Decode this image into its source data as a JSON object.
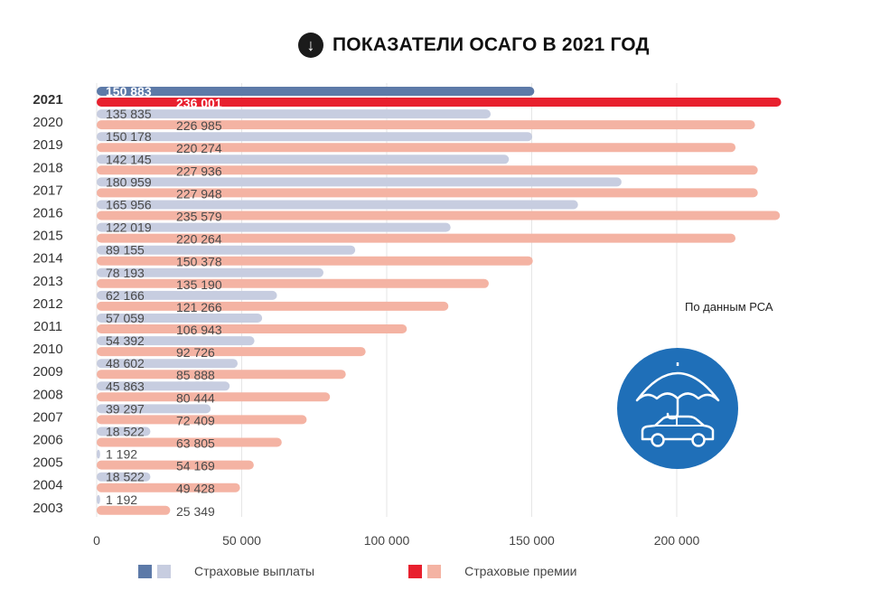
{
  "title": "ПОКАЗАТЕЛИ ОСАГО В 2021 ГОД",
  "title_icon": "arrow-down-circle-icon",
  "source_note": "По данным РСА",
  "badge_icon": "umbrella-car-icon",
  "colors": {
    "payout_highlight": "#5d7aa8",
    "payout": "#c7cde0",
    "premium_highlight": "#e8202e",
    "premium": "#f4b3a3",
    "badge": "#1f6fb8"
  },
  "chart_data": {
    "type": "bar",
    "orientation": "horizontal",
    "categories": [
      "2021",
      "2020",
      "2019",
      "2018",
      "2017",
      "2016",
      "2015",
      "2014",
      "2013",
      "2012",
      "2011",
      "2010",
      "2009",
      "2008",
      "2007",
      "2006",
      "2005",
      "2004",
      "2003"
    ],
    "series": [
      {
        "name": "Страховые выплаты",
        "values": [
          150883,
          135835,
          150178,
          142145,
          180959,
          165956,
          122019,
          89155,
          78193,
          62166,
          57059,
          54392,
          48602,
          45863,
          39297,
          18522,
          1192,
          18522,
          1192
        ],
        "labels": [
          "150 883",
          "135 835",
          "150 178",
          "142 145",
          "180 959",
          "165 956",
          "122 019",
          "89 155",
          "78 193",
          "62 166",
          "57 059",
          "54 392",
          "48 602",
          "45 863",
          "39 297",
          "18 522",
          "1 192",
          "18 522",
          "1 192"
        ]
      },
      {
        "name": "Страховые премии",
        "values": [
          236001,
          226985,
          220274,
          227936,
          227948,
          235579,
          220264,
          150378,
          135190,
          121266,
          106943,
          92726,
          85888,
          80444,
          72409,
          63805,
          54169,
          49428,
          25349
        ],
        "labels": [
          "236 001",
          "226 985",
          "220 274",
          "227 936",
          "227 948",
          "235 579",
          "220 264",
          "150 378",
          "135 190",
          "121 266",
          "106 943",
          "92 726",
          "85 888",
          "80 444",
          "72 409",
          "63 805",
          "54 169",
          "49 428",
          "25 349"
        ]
      }
    ],
    "xlim": [
      0,
      250000
    ],
    "xticks": [
      0,
      50000,
      100000,
      150000,
      200000
    ],
    "xtick_labels": [
      "0",
      "50 000",
      "100 000",
      "150 000",
      "200 000"
    ],
    "grid": "vertical",
    "legend_position": "bottom",
    "highlight_category": "2021"
  }
}
